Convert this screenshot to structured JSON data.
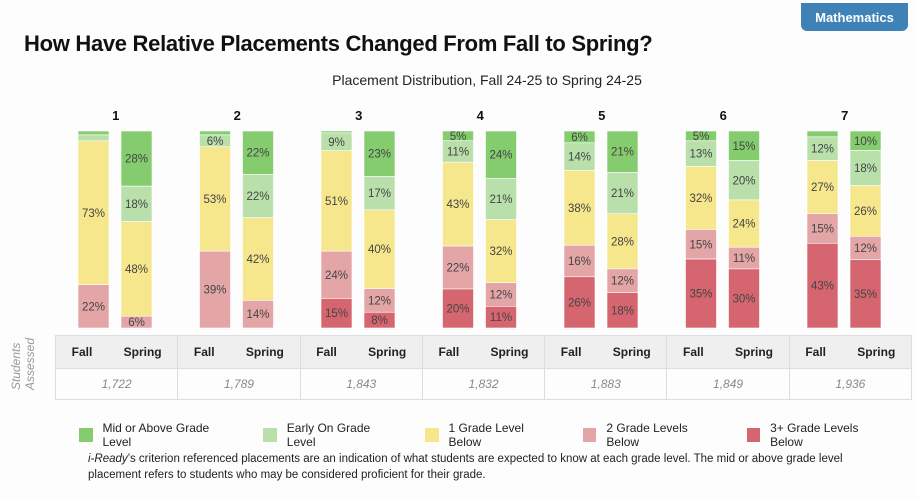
{
  "badge": "Mathematics",
  "title": "How Have Relative Placements Changed From Fall to Spring?",
  "side_label": "Students Assessed",
  "chart_data": {
    "type": "bar",
    "stacked": true,
    "percent": true,
    "title": "Placement Distribution, Fall 24-25 to Spring 24-25",
    "groups": [
      "1",
      "2",
      "3",
      "4",
      "5",
      "6",
      "7"
    ],
    "bar_labels": [
      "Fall",
      "Spring"
    ],
    "levels": [
      "Mid or Above Grade Level",
      "Early On Grade Level",
      "1 Grade Level Below",
      "2 Grade Levels Below",
      "3+ Grade Levels Below"
    ],
    "colors": [
      "#84cc6e",
      "#b9e0ab",
      "#f6e68c",
      "#e4a5a7",
      "#d5666f"
    ],
    "data": [
      {
        "fall": [
          2,
          3,
          73,
          22,
          0
        ],
        "spring": [
          28,
          18,
          48,
          6,
          0
        ],
        "students": "1,722"
      },
      {
        "fall": [
          2,
          6,
          53,
          39,
          0
        ],
        "spring": [
          22,
          22,
          42,
          14,
          0
        ],
        "students": "1,789"
      },
      {
        "fall": [
          1,
          9,
          51,
          24,
          15
        ],
        "spring": [
          23,
          17,
          40,
          12,
          8
        ],
        "students": "1,843"
      },
      {
        "fall": [
          5,
          11,
          43,
          22,
          20
        ],
        "spring": [
          24,
          21,
          32,
          12,
          11
        ],
        "students": "1,832"
      },
      {
        "fall": [
          6,
          14,
          38,
          16,
          26
        ],
        "spring": [
          21,
          21,
          28,
          12,
          18
        ],
        "students": "1,883"
      },
      {
        "fall": [
          5,
          13,
          32,
          15,
          35
        ],
        "spring": [
          15,
          20,
          24,
          11,
          30
        ],
        "students": "1,849"
      },
      {
        "fall": [
          3,
          12,
          27,
          15,
          43
        ],
        "spring": [
          10,
          18,
          26,
          12,
          35
        ],
        "students": "1,936"
      }
    ]
  },
  "footnote_italic": "i-Ready",
  "footnote": "’s criterion referenced placements are an indication of what students are expected to know at each grade level. The mid or above grade level placement refers to students who may be considered proficient for their grade."
}
